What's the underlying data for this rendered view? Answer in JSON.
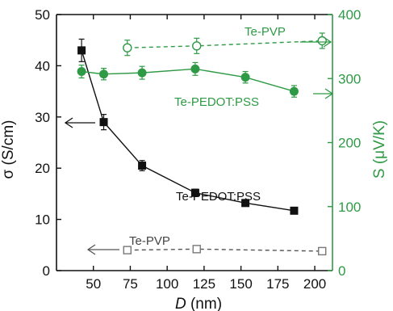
{
  "colors": {
    "black": "#111111",
    "green": "#2f9a45",
    "gray": "#555555",
    "open_marker_edge": "#777777"
  },
  "chart_data": {
    "type": "scatter",
    "xlabel": "D (nm)",
    "xlabel_prefix": "D",
    "xlabel_suffix": " (nm)",
    "ylabel": "σ (S/cm)",
    "y2label": "S (μV/K)",
    "xlim": [
      25,
      212
    ],
    "ylim": [
      0,
      50
    ],
    "y2lim": [
      0,
      400
    ],
    "xticks": [
      50,
      75,
      100,
      125,
      150,
      175,
      200
    ],
    "yticks": [
      0,
      10,
      20,
      30,
      40,
      50
    ],
    "y2ticks": [
      0,
      100,
      200,
      300,
      400
    ],
    "series": [
      {
        "name": "Te-PEDOT:PSS",
        "axis": "left",
        "quantity": "conductivity",
        "color": "#111111",
        "marker": "filled-square",
        "line": "solid",
        "x": [
          42,
          57,
          83,
          119,
          153,
          186
        ],
        "y": [
          43.0,
          29.0,
          20.5,
          15.2,
          13.2,
          11.7
        ],
        "err": [
          2.2,
          1.5,
          1.0,
          0.7,
          0.6,
          0.5
        ]
      },
      {
        "name": "Te-PVP",
        "axis": "left",
        "quantity": "conductivity",
        "color": "#555555",
        "marker": "open-square",
        "line": "dashed",
        "x": [
          73,
          120,
          205
        ],
        "y": [
          4.0,
          4.2,
          3.8
        ],
        "err": [
          0.3,
          0.3,
          0.3
        ]
      },
      {
        "name": "Te-PEDOT:PSS",
        "axis": "right",
        "quantity": "seebeck",
        "color": "#2f9a45",
        "marker": "filled-circle",
        "line": "solid",
        "x": [
          42,
          57,
          83,
          119,
          153,
          186
        ],
        "y": [
          311,
          307,
          309,
          315,
          302,
          280
        ],
        "err": [
          10,
          9,
          10,
          10,
          9,
          9
        ]
      },
      {
        "name": "Te-PVP",
        "axis": "right",
        "quantity": "seebeck",
        "color": "#2f9a45",
        "marker": "open-circle",
        "line": "dashed",
        "x": [
          73,
          120,
          205
        ],
        "y": [
          348,
          351,
          359
        ],
        "err": [
          12,
          12,
          12
        ]
      }
    ],
    "annotations": [
      {
        "text": "Te-PVP",
        "target": "right-axis",
        "color": "#2f9a45"
      },
      {
        "text": "Te-PEDOT:PSS",
        "target": "right-axis",
        "color": "#2f9a45"
      },
      {
        "text": "Te-PEDOT:PSS",
        "target": "left-axis",
        "color": "#111111"
      },
      {
        "text": "Te-PVP",
        "target": "left-axis",
        "color": "#555555"
      }
    ]
  }
}
